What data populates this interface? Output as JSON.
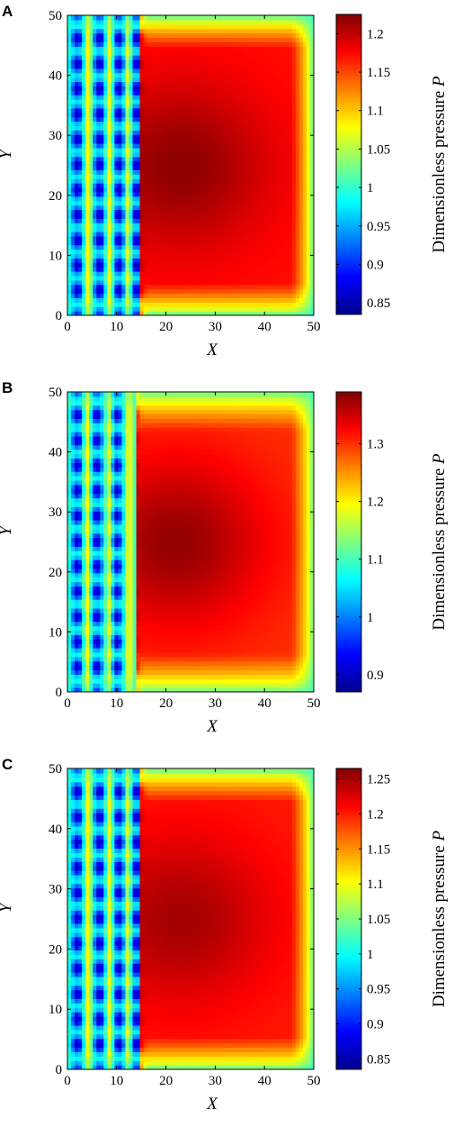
{
  "colormap": [
    "#00008f",
    "#0000ff",
    "#0080ff",
    "#00ffff",
    "#80ff80",
    "#ffff00",
    "#ff8000",
    "#ff0000",
    "#800000"
  ],
  "chart_data": [
    {
      "type": "heatmap",
      "panel_label": "A",
      "xlabel": "X",
      "ylabel": "Y",
      "colorbar_label": "Dimensionless pressure",
      "colorbar_label_symbol": "P",
      "xlim": [
        0,
        50
      ],
      "ylim": [
        0,
        50
      ],
      "xticks": [
        "0",
        "10",
        "20",
        "30",
        "40",
        "50"
      ],
      "yticks": [
        "0",
        "10",
        "20",
        "30",
        "40",
        "50"
      ],
      "clim": [
        0.835,
        1.225
      ],
      "cticks": [
        0.85,
        0.9,
        0.95,
        1,
        1.05,
        1.1,
        1.15,
        1.2
      ],
      "cticklabels": [
        "0.85",
        "0.9",
        "0.95",
        "1",
        "1.05",
        "1.1",
        "1.15",
        "1.2"
      ],
      "groove_columns_x": [
        2.0,
        6.5,
        10.5,
        14.0
      ],
      "land_columns_x": [
        4.2,
        8.5,
        12.3
      ],
      "peak_region": {
        "x": [
          15,
          48
        ],
        "y": [
          2,
          48
        ],
        "value": 1.17
      },
      "peak_value": 1.22,
      "min_value": 0.84,
      "boundary_value": 1.0
    },
    {
      "type": "heatmap",
      "panel_label": "B",
      "xlabel": "X",
      "ylabel": "Y",
      "colorbar_label": "Dimensionless pressure",
      "colorbar_label_symbol": "P",
      "xlim": [
        0,
        50
      ],
      "ylim": [
        0,
        50
      ],
      "xticks": [
        "0",
        "10",
        "20",
        "30",
        "40",
        "50"
      ],
      "yticks": [
        "0",
        "10",
        "20",
        "30",
        "40",
        "50"
      ],
      "clim": [
        0.87,
        1.39
      ],
      "cticks": [
        0.9,
        1.0,
        1.1,
        1.2,
        1.3
      ],
      "cticklabels": [
        "0.9",
        "1",
        "1.1",
        "1.2",
        "1.3"
      ],
      "groove_columns_x": [
        2.0,
        6.0,
        10.0
      ],
      "land_columns_x": [
        4.0,
        8.5,
        12.5
      ],
      "peak_region": {
        "x": [
          14,
          48
        ],
        "y": [
          3,
          47
        ],
        "value": 1.3
      },
      "peak_value": 1.38,
      "min_value": 0.88,
      "boundary_value": 1.1
    },
    {
      "type": "heatmap",
      "panel_label": "C",
      "xlabel": "X",
      "ylabel": "Y",
      "colorbar_label": "Dimensionless pressure",
      "colorbar_label_symbol": "P",
      "xlim": [
        0,
        50
      ],
      "ylim": [
        0,
        50
      ],
      "xticks": [
        "0",
        "10",
        "20",
        "30",
        "40",
        "50"
      ],
      "yticks": [
        "0",
        "10",
        "20",
        "30",
        "40",
        "50"
      ],
      "clim": [
        0.835,
        1.265
      ],
      "cticks": [
        0.85,
        0.9,
        0.95,
        1,
        1.05,
        1.1,
        1.15,
        1.2,
        1.25
      ],
      "cticklabels": [
        "0.85",
        "0.9",
        "0.95",
        "1",
        "1.05",
        "1.1",
        "1.15",
        "1.2",
        "1.25"
      ],
      "groove_columns_x": [
        2.0,
        6.5,
        10.5,
        14.0
      ],
      "land_columns_x": [
        4.2,
        8.5,
        12.3
      ],
      "peak_region": {
        "x": [
          15,
          48
        ],
        "y": [
          2,
          48
        ],
        "value": 1.2
      },
      "peak_value": 1.25,
      "min_value": 0.84,
      "boundary_value": 1.02
    }
  ]
}
